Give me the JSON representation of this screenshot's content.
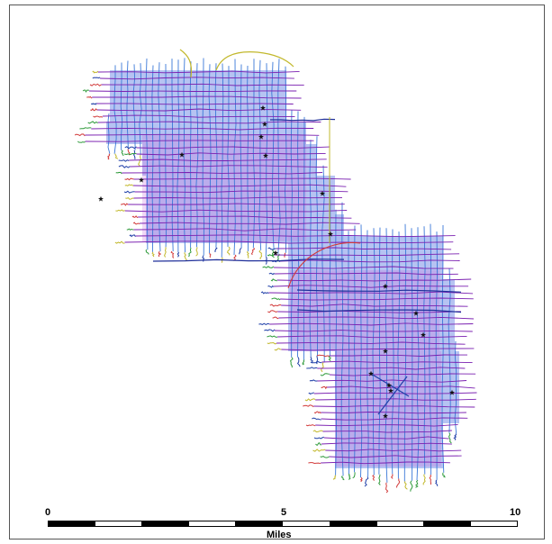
{
  "map": {
    "colors": {
      "area_fill": "#a9b8f0",
      "inline_lines": "#7a1fb0",
      "crossline_lines": "#3a78d8",
      "east_area_fill": "#c872e0",
      "tail_colors": [
        "#2e9a3a",
        "#c2b82c",
        "#d23b3b",
        "#1f3fa8"
      ],
      "well_marker": "#111111"
    },
    "icons": {
      "well": "star-icon"
    }
  },
  "scale_bar": {
    "labels": [
      "0",
      "5",
      "10"
    ],
    "unit": "Miles",
    "colors": {
      "dark": "#000000",
      "light": "#ffffff"
    }
  }
}
